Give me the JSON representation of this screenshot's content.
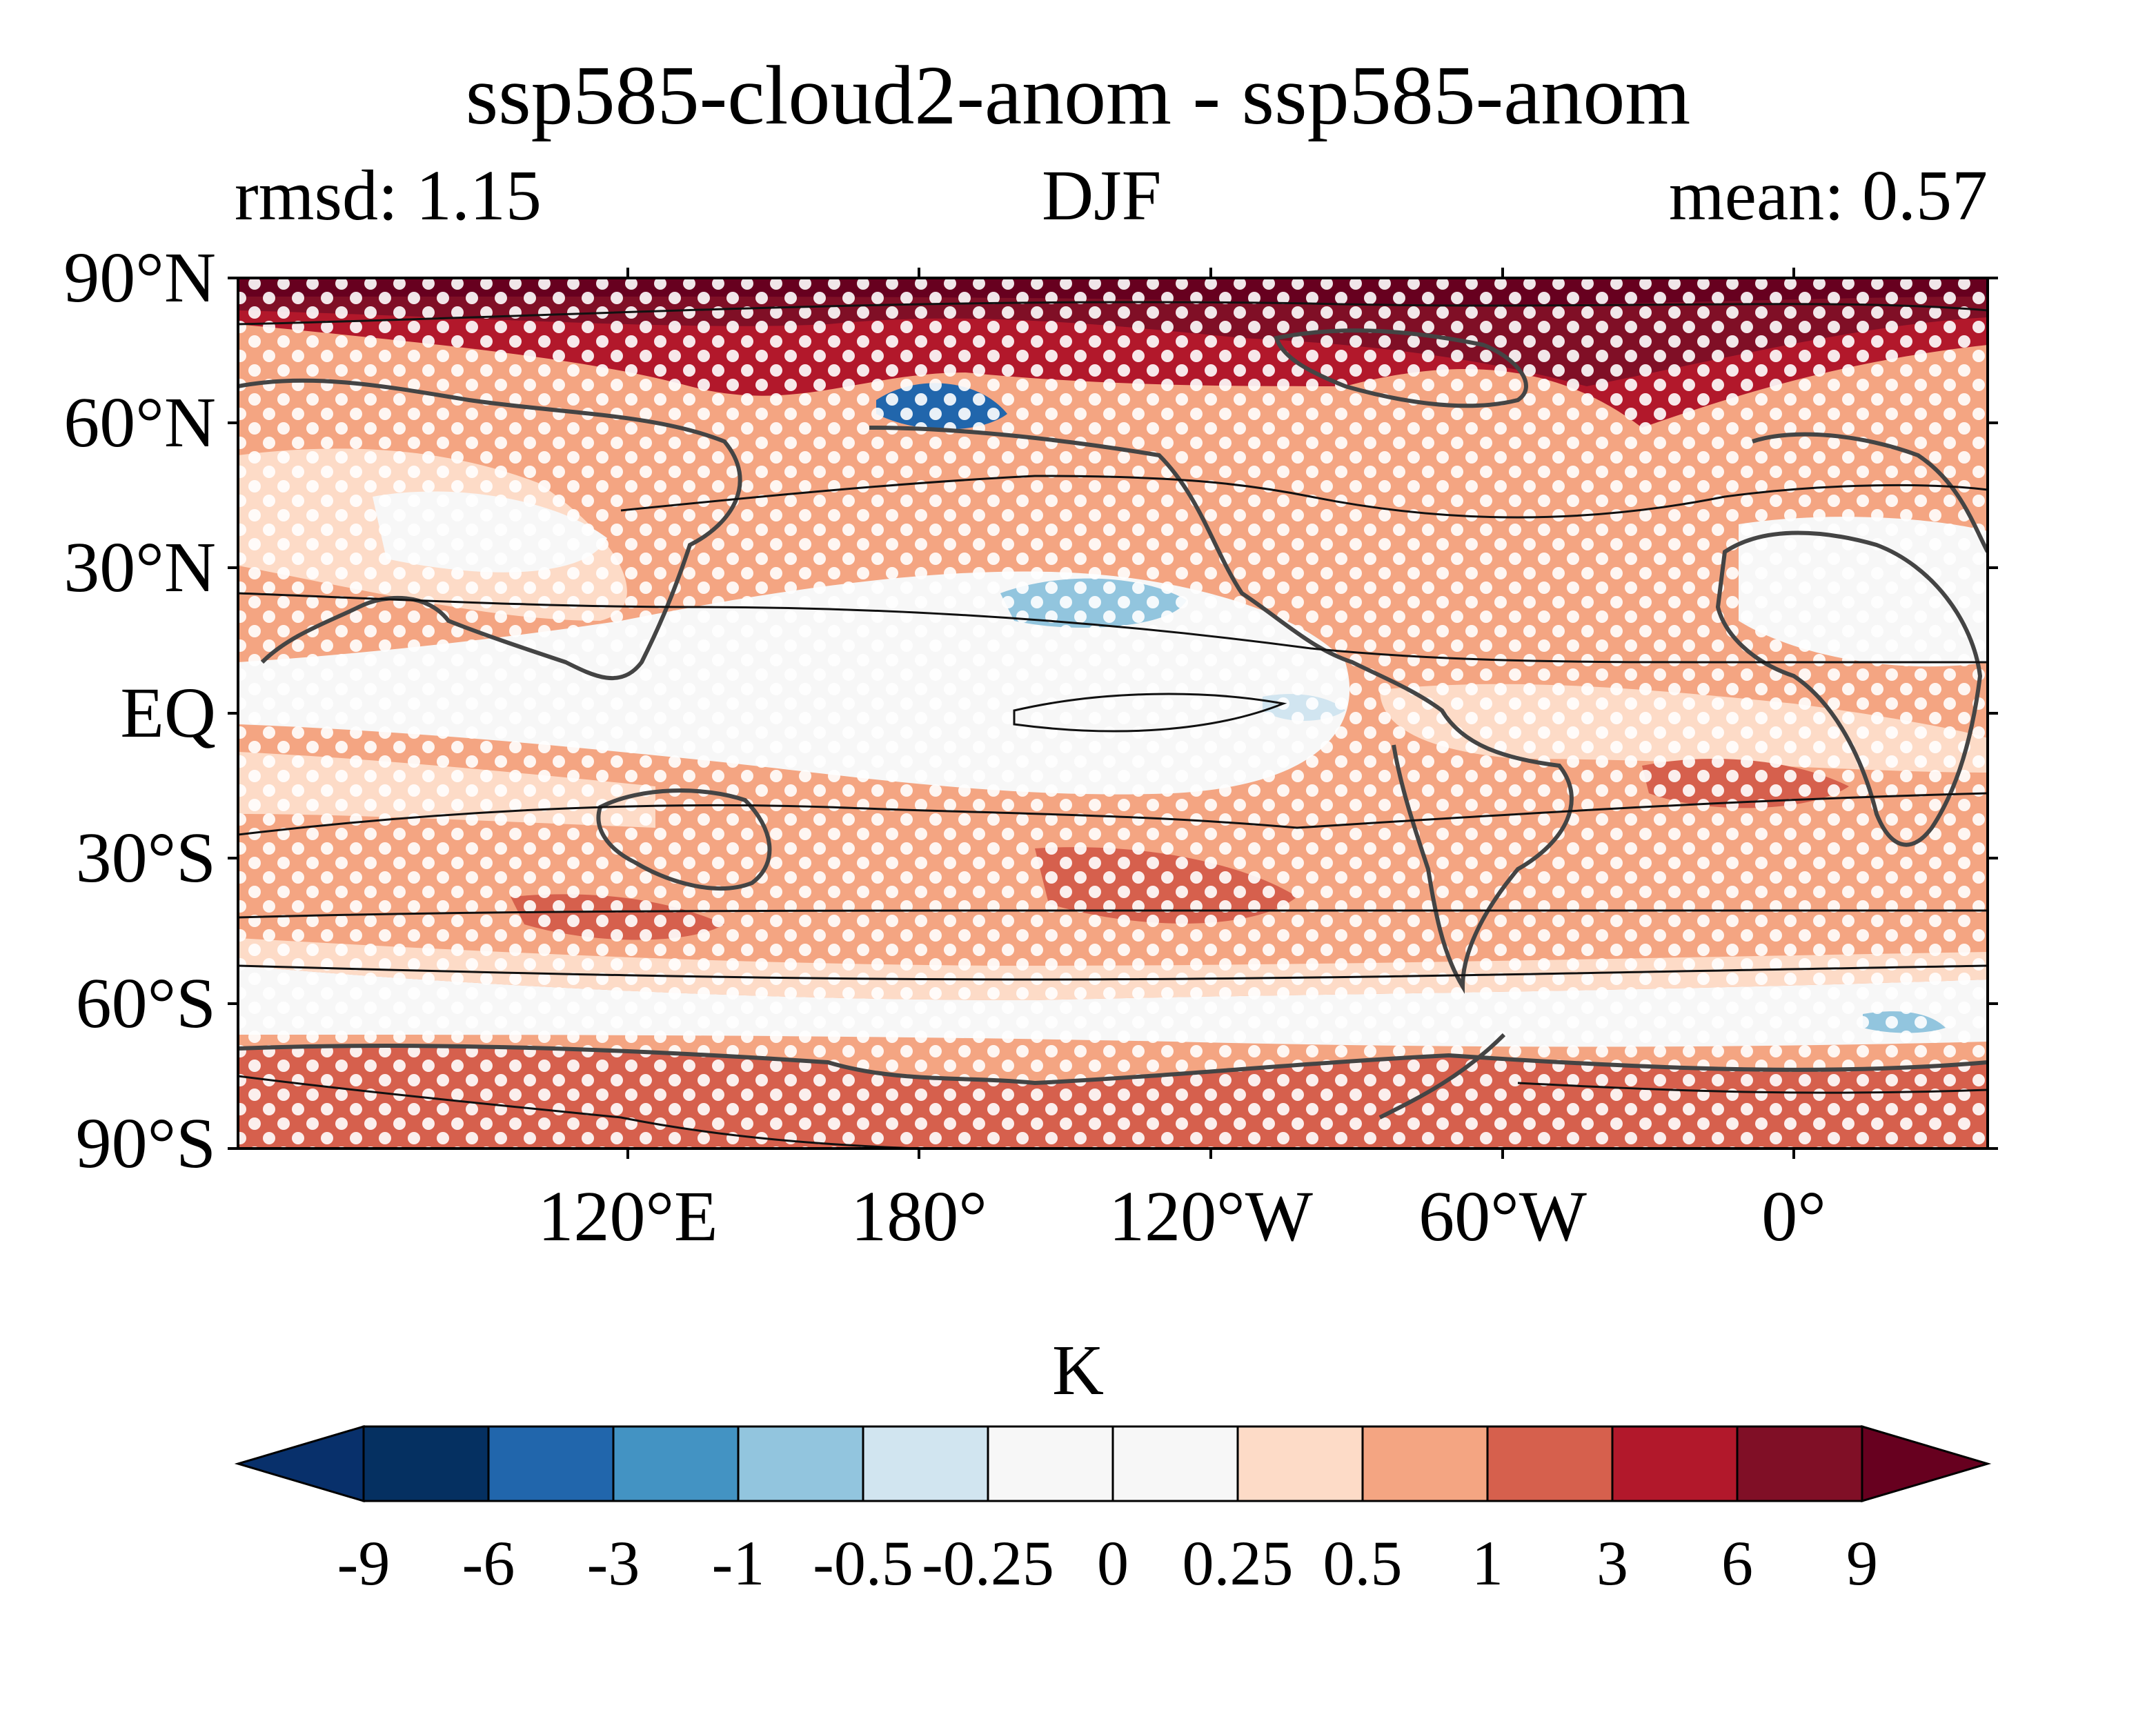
{
  "title": "ssp585-cloud2-anom - ssp585-anom",
  "subtitle_left": "rmsd: 1.15",
  "subtitle_center": "DJF",
  "subtitle_right": "mean: 0.57",
  "lat_labels": [
    "90°N",
    "60°N",
    "30°N",
    "EQ",
    "30°S",
    "60°S",
    "90°S"
  ],
  "lon_labels": [
    "120°E",
    "180°",
    "120°W",
    "60°W",
    "0°"
  ],
  "colorbar": {
    "unit": "K",
    "levels": [
      "-9",
      "-6",
      "-3",
      "-1",
      "-0.5",
      "-0.25",
      "0",
      "0.25",
      "0.5",
      "1",
      "3",
      "6",
      "9"
    ],
    "colors": [
      "#08306b",
      "#053061",
      "#2166ac",
      "#4393c3",
      "#92c5de",
      "#d1e5f0",
      "#f7f7f7",
      "#f7f7f7",
      "#fddbc7",
      "#f4a582",
      "#d6604d",
      "#b2182b",
      "#800f26",
      "#67001f"
    ]
  }
}
